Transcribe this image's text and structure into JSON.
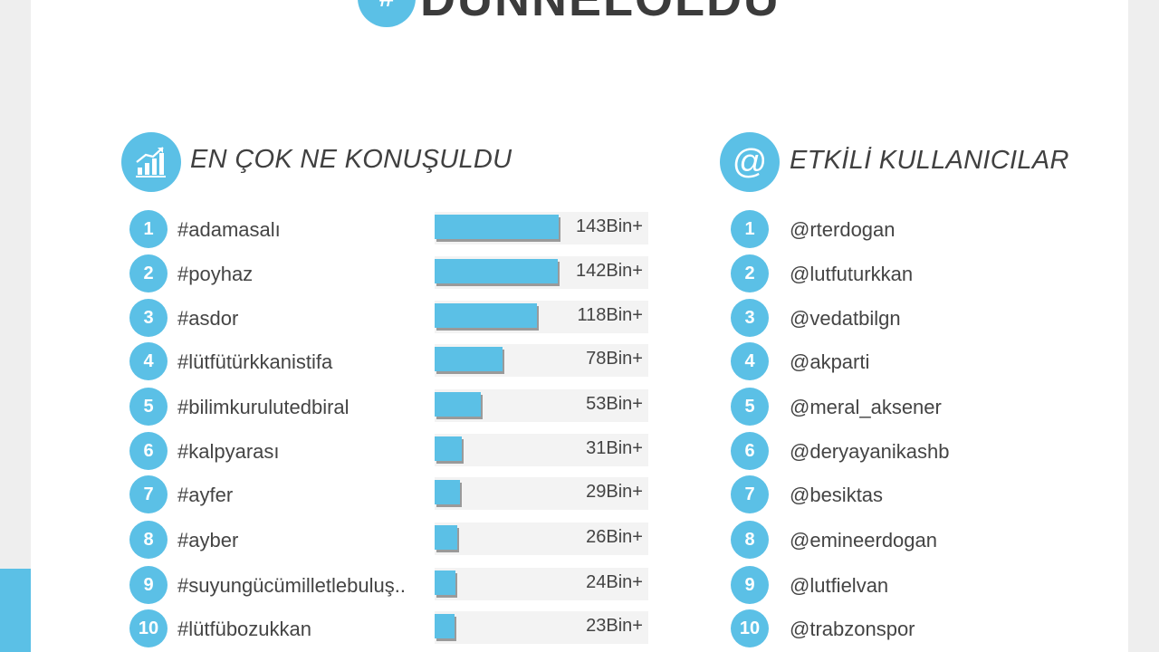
{
  "header": {
    "badge": "#",
    "title": "DÜNNELOLDU"
  },
  "sections": {
    "topics": {
      "title": "EN ÇOK NE KONUŞULDU",
      "icon": "growth-chart-icon"
    },
    "users": {
      "title": "ETKİLİ KULLANICILAR",
      "icon": "at-sign-icon",
      "icon_glyph": "@"
    }
  },
  "colors": {
    "accent": "#5bc0e6",
    "text": "#444444",
    "bar_shadow": "#9a9a9a"
  },
  "chart_data": {
    "type": "bar",
    "categories": [
      "#adamasalı",
      "#poyhaz",
      "#asdor",
      "#lütfütürkkanistifa",
      "#bilimkurulutedbiral",
      "#kalpyarası",
      "#ayfer",
      "#ayber",
      "#suyungücümilletlebuluş..",
      "#lütfübozukkan"
    ],
    "values": [
      143,
      142,
      118,
      78,
      53,
      31,
      29,
      26,
      24,
      23
    ],
    "value_labels": [
      "143Bin+",
      "142Bin+",
      "118Bin+",
      "78Bin+",
      "53Bin+",
      "31Bin+",
      "29Bin+",
      "26Bin+",
      "24Bin+",
      "23Bin+"
    ],
    "ranks": [
      "1",
      "2",
      "3",
      "4",
      "5",
      "6",
      "7",
      "8",
      "9",
      "10"
    ]
  },
  "users": [
    {
      "rank": "1",
      "handle": "@rterdogan"
    },
    {
      "rank": "2",
      "handle": "@lutfuturkkan"
    },
    {
      "rank": "3",
      "handle": "@vedatbilgn"
    },
    {
      "rank": "4",
      "handle": "@akparti"
    },
    {
      "rank": "5",
      "handle": "@meral_aksener"
    },
    {
      "rank": "6",
      "handle": "@deryayanikashb"
    },
    {
      "rank": "7",
      "handle": "@besiktas"
    },
    {
      "rank": "8",
      "handle": "@emineerdogan"
    },
    {
      "rank": "9",
      "handle": "@lutfielvan"
    },
    {
      "rank": "10",
      "handle": "@trabzonspor"
    }
  ]
}
